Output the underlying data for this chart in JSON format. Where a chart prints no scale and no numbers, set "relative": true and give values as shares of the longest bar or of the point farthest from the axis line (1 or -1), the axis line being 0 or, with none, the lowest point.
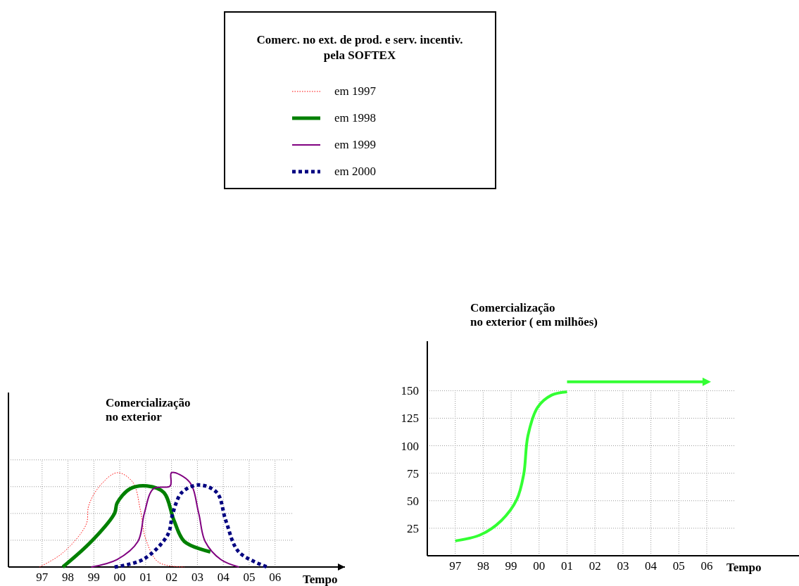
{
  "chart_data": [
    {
      "type": "line",
      "relative": true,
      "title": "Comercialização\nno exterior",
      "xlabel": "Tempo",
      "legend_title": "Comerc. no ext. de prod. e serv.  incentiv.\npela SOFTEX",
      "legend": "top",
      "grid": true,
      "tick_labels": "x",
      "xlim": [
        1995.7,
        2008.7
      ],
      "xticks": [
        {
          "value": 1997,
          "label": "97"
        },
        {
          "value": 1998,
          "label": "98"
        },
        {
          "value": 1999,
          "label": "99"
        },
        {
          "value": 2000,
          "label": "00"
        },
        {
          "value": 2001,
          "label": "01"
        },
        {
          "value": 2002,
          "label": "02"
        },
        {
          "value": 2003,
          "label": "03"
        },
        {
          "value": 2004,
          "label": "04"
        },
        {
          "value": 2005,
          "label": "05"
        },
        {
          "value": 2006,
          "label": "06"
        }
      ],
      "series": [
        {
          "name": "em 1997",
          "color": "#ff0000",
          "line_style": "dotted",
          "x": [
            1996.9,
            1997.8,
            1998.7,
            1998.8,
            1999.2,
            1999.9,
            2000.5,
            2000.8,
            2001.0,
            2001.5,
            2002.5
          ],
          "values": [
            0,
            0.15,
            0.45,
            0.65,
            0.85,
            1.0,
            0.9,
            0.6,
            0.3,
            0.05,
            0
          ]
        },
        {
          "name": "em 1998",
          "color": "#008000",
          "line_style": "solid",
          "x": [
            1997.8,
            1998.9,
            1999.8,
            1999.9,
            2000.4,
            2001.05,
            2001.7,
            2002.1,
            2002.5,
            2003.5
          ],
          "values": [
            0,
            0.27,
            0.57,
            0.68,
            0.83,
            0.86,
            0.79,
            0.49,
            0.27,
            0.16
          ]
        },
        {
          "name": "em 1999",
          "color": "#800080",
          "line_style": "solid",
          "x": [
            1998.9,
            1999.9,
            2000.7,
            2000.95,
            2001.3,
            2001.95,
            2002.0,
            2002.7,
            2003.05,
            2003.3,
            2003.9,
            2004.6
          ],
          "values": [
            0,
            0.08,
            0.27,
            0.57,
            0.83,
            0.86,
            1.0,
            0.9,
            0.57,
            0.27,
            0.08,
            0
          ]
        },
        {
          "name": "em 2000",
          "color": "#000080",
          "line_style": "dashed",
          "x": [
            1999.8,
            2000.9,
            2001.85,
            2002.05,
            2002.4,
            2003.05,
            2003.75,
            2004.1,
            2004.6,
            2005.7
          ],
          "values": [
            0,
            0.08,
            0.34,
            0.57,
            0.79,
            0.87,
            0.79,
            0.49,
            0.16,
            0
          ]
        }
      ]
    },
    {
      "type": "line",
      "title": "Comercialização\nno exterior ( em  milhões)",
      "xlabel": "Tempo",
      "grid": true,
      "xlim": [
        1996,
        2009.3
      ],
      "ylim": [
        0,
        195
      ],
      "xticks": [
        {
          "value": 1997,
          "label": "97"
        },
        {
          "value": 1998,
          "label": "98"
        },
        {
          "value": 1999,
          "label": "99"
        },
        {
          "value": 2000,
          "label": "00"
        },
        {
          "value": 2001,
          "label": "01"
        },
        {
          "value": 2002,
          "label": "02"
        },
        {
          "value": 2003,
          "label": "03"
        },
        {
          "value": 2004,
          "label": "04"
        },
        {
          "value": 2005,
          "label": "05"
        },
        {
          "value": 2006,
          "label": "06"
        }
      ],
      "yticks": [
        25,
        50,
        75,
        100,
        125,
        150
      ],
      "series": [
        {
          "color": "#33ff33",
          "x": [
            1997,
            1997.9,
            1998.65,
            1999.2,
            1999.45,
            1999.6,
            1999.95,
            2000.45,
            2001
          ],
          "values": [
            13.5,
            19,
            32,
            51,
            74,
            109,
            135,
            146,
            149
          ]
        },
        {
          "color": "#33ff33",
          "x": [
            2001,
            2005.9
          ],
          "values": [
            158,
            158
          ]
        }
      ]
    }
  ]
}
